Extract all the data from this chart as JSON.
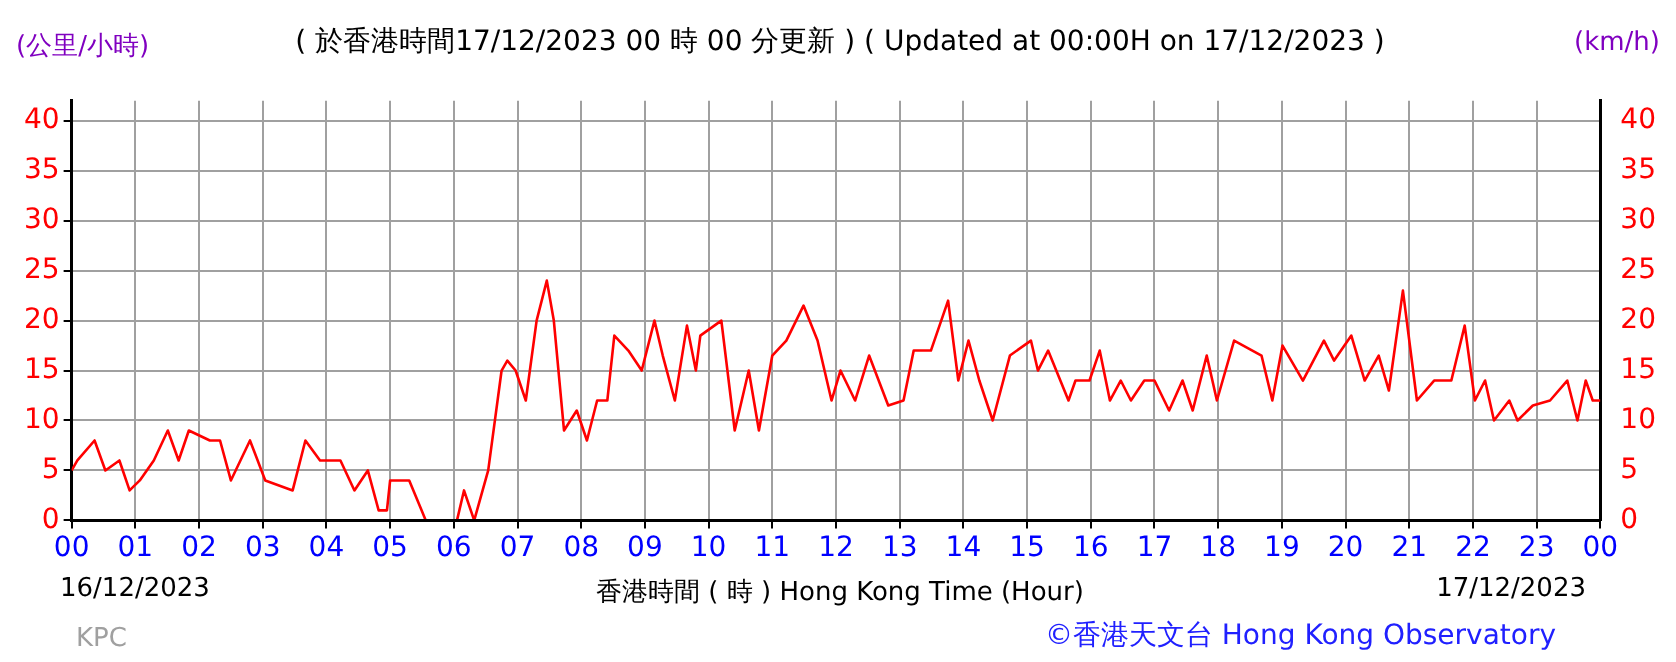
{
  "chart_data": {
    "type": "line",
    "title": "( 於香港時間17/12/2023 00 時 00 分更新 ) ( Updated at 00:00H on 17/12/2023 )",
    "xlabel": "香港時間 ( 時 ) Hong Kong Time (Hour)",
    "ylabel": "(公里/小時)",
    "y2label": "(km/h)",
    "annotations": [
      "16/12/2023",
      "17/12/2023",
      "KPC",
      "©香港天文台 Hong Kong Observatory"
    ],
    "x": [
      0,
      0.09,
      0.36,
      0.53,
      0.75,
      0.91,
      1.07,
      1.29,
      1.51,
      1.68,
      1.84,
      2.17,
      2.33,
      2.5,
      2.8,
      3.04,
      3.47,
      3.67,
      3.9,
      4.22,
      4.44,
      4.65,
      4.82,
      4.95,
      5.0,
      5.3,
      5.56,
      6.05,
      6.16,
      6.32,
      6.54,
      6.75,
      6.84,
      6.97,
      7.13,
      7.3,
      7.46,
      7.57,
      7.73,
      7.93,
      8.09,
      8.25,
      8.41,
      8.52,
      8.74,
      8.95,
      9.15,
      9.28,
      9.47,
      9.66,
      9.8,
      9.87,
      10.2,
      10.41,
      10.63,
      10.79,
      11.0,
      11.22,
      11.49,
      11.71,
      11.93,
      12.07,
      12.3,
      12.52,
      12.82,
      13.06,
      13.22,
      13.49,
      13.76,
      13.92,
      14.08,
      14.25,
      14.46,
      14.73,
      15.06,
      15.17,
      15.33,
      15.65,
      15.76,
      15.98,
      16.14,
      16.3,
      16.47,
      16.63,
      16.84,
      17.0,
      17.23,
      17.44,
      17.6,
      17.82,
      17.98,
      18.25,
      18.68,
      18.85,
      19.01,
      19.33,
      19.66,
      19.82,
      20.09,
      20.3,
      20.52,
      20.68,
      20.9,
      21.12,
      21.39,
      21.66,
      21.87,
      22.03,
      22.19,
      22.33,
      22.57,
      22.7,
      22.94,
      23.21,
      23.48,
      23.64,
      23.77,
      23.88,
      24
    ],
    "series": [
      {
        "color": "#ff0000",
        "values": [
          5,
          6,
          8,
          5,
          6,
          3,
          4,
          6,
          9,
          6,
          9,
          8,
          8,
          4,
          8,
          4,
          3,
          8,
          6,
          6,
          3,
          5,
          1,
          1,
          4,
          4,
          0,
          0,
          3,
          0,
          5,
          15,
          16,
          15,
          12,
          20,
          24,
          20,
          9,
          11,
          8,
          12,
          12,
          18.5,
          17,
          15,
          20,
          16.5,
          12,
          19.5,
          15,
          18.5,
          20,
          9,
          15,
          9,
          16.5,
          18,
          21.5,
          18,
          12,
          15,
          12,
          16.5,
          11.5,
          12,
          17,
          17,
          22,
          14,
          18,
          14,
          10,
          16.5,
          18,
          15,
          17,
          12,
          14,
          14,
          17,
          12,
          14,
          12,
          14,
          14,
          11,
          14,
          11,
          16.5,
          12,
          18,
          16.5,
          12,
          17.5,
          14,
          18,
          16,
          18.5,
          14,
          16.5,
          13,
          23,
          12,
          14,
          14,
          19.5,
          12,
          14,
          10,
          12,
          10,
          11.5,
          12,
          14,
          10,
          14,
          12,
          12
        ]
      }
    ],
    "xlim": [
      0,
      24
    ],
    "xticks": [
      {
        "value": 0,
        "label": "00"
      },
      {
        "value": 1,
        "label": "01"
      },
      {
        "value": 2,
        "label": "02"
      },
      {
        "value": 3,
        "label": "03"
      },
      {
        "value": 4,
        "label": "04"
      },
      {
        "value": 5,
        "label": "05"
      },
      {
        "value": 6,
        "label": "06"
      },
      {
        "value": 7,
        "label": "07"
      },
      {
        "value": 8,
        "label": "08"
      },
      {
        "value": 9,
        "label": "09"
      },
      {
        "value": 10,
        "label": "10"
      },
      {
        "value": 11,
        "label": "11"
      },
      {
        "value": 12,
        "label": "12"
      },
      {
        "value": 13,
        "label": "13"
      },
      {
        "value": 14,
        "label": "14"
      },
      {
        "value": 15,
        "label": "15"
      },
      {
        "value": 16,
        "label": "16"
      },
      {
        "value": 17,
        "label": "17"
      },
      {
        "value": 18,
        "label": "18"
      },
      {
        "value": 19,
        "label": "19"
      },
      {
        "value": 20,
        "label": "20"
      },
      {
        "value": 21,
        "label": "21"
      },
      {
        "value": 22,
        "label": "22"
      },
      {
        "value": 23,
        "label": "23"
      },
      {
        "value": 24,
        "label": "00"
      }
    ],
    "ylim": [
      0,
      42
    ],
    "yticks": [
      0,
      5,
      10,
      15,
      20,
      25,
      30,
      35,
      40
    ],
    "y2lim": [
      0,
      42
    ],
    "y2ticks": [
      0,
      5,
      10,
      15,
      20,
      25,
      30,
      35,
      40
    ],
    "grid": true,
    "legend": false,
    "marker": "none",
    "line_style": "solid"
  }
}
